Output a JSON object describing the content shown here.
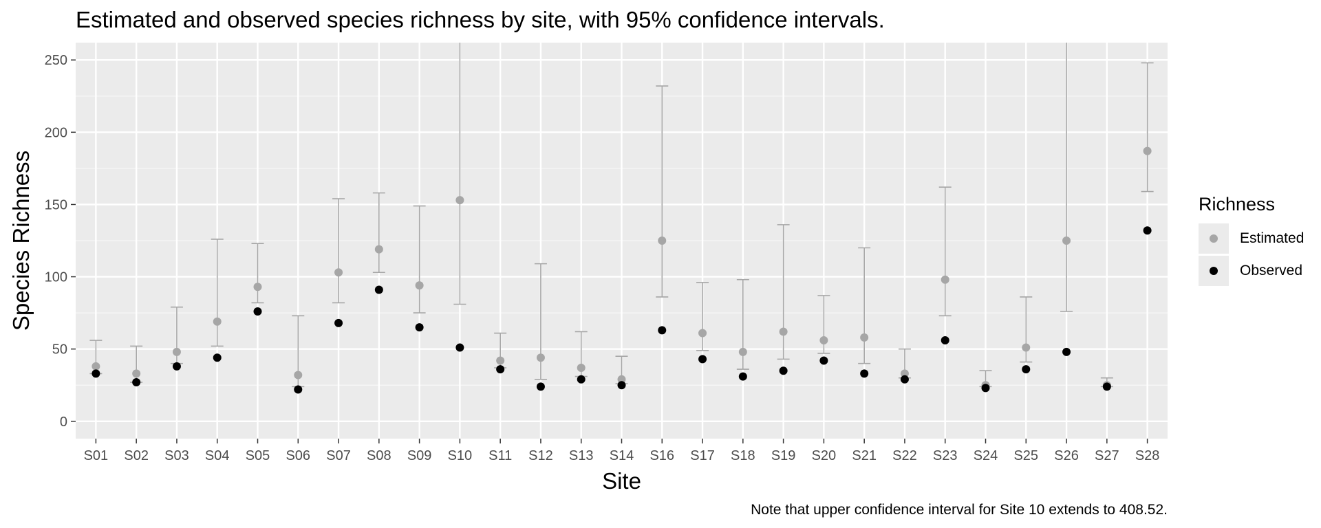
{
  "chart_data": {
    "type": "scatter",
    "title": "Estimated and observed species richness by site, with 95% confidence intervals.",
    "xlabel": "Site",
    "ylabel": "Species Richness",
    "caption": "Note that upper confidence interval for Site 10 extends to 408.52.",
    "ylim": [
      -12,
      262
    ],
    "yticks": [
      0,
      50,
      100,
      150,
      200,
      250
    ],
    "categories": [
      "S01",
      "S02",
      "S03",
      "S04",
      "S05",
      "S06",
      "S07",
      "S08",
      "S09",
      "S10",
      "S11",
      "S12",
      "S13",
      "S14",
      "S16",
      "S17",
      "S18",
      "S19",
      "S20",
      "S21",
      "S22",
      "S23",
      "S24",
      "S25",
      "S26",
      "S27",
      "S28"
    ],
    "series": [
      {
        "name": "Estimated",
        "color": "#a6a6a6",
        "values": [
          38,
          33,
          48,
          69,
          93,
          32,
          103,
          119,
          94,
          153,
          42,
          44,
          37,
          29,
          125,
          61,
          48,
          62,
          56,
          58,
          33,
          98,
          25,
          51,
          125,
          25,
          187
        ],
        "ci_lower": [
          33,
          27,
          40,
          52,
          82,
          24,
          82,
          103,
          75,
          81,
          37,
          29,
          31,
          26,
          86,
          49,
          36,
          43,
          47,
          40,
          30,
          73,
          24,
          41,
          76,
          24,
          159
        ],
        "ci_upper": [
          56,
          52,
          79,
          126,
          123,
          73,
          154,
          158,
          149,
          408.52,
          61,
          109,
          62,
          45,
          232,
          96,
          98,
          136,
          87,
          120,
          50,
          162,
          35,
          86,
          408.52,
          30,
          248
        ]
      },
      {
        "name": "Observed",
        "color": "#000000",
        "values": [
          33,
          27,
          38,
          44,
          76,
          22,
          68,
          91,
          65,
          51,
          36,
          24,
          29,
          25,
          63,
          43,
          31,
          35,
          42,
          33,
          29,
          56,
          23,
          36,
          48,
          24,
          132
        ]
      }
    ],
    "legend": {
      "title": "Richness",
      "position": "right"
    },
    "grid": true
  }
}
